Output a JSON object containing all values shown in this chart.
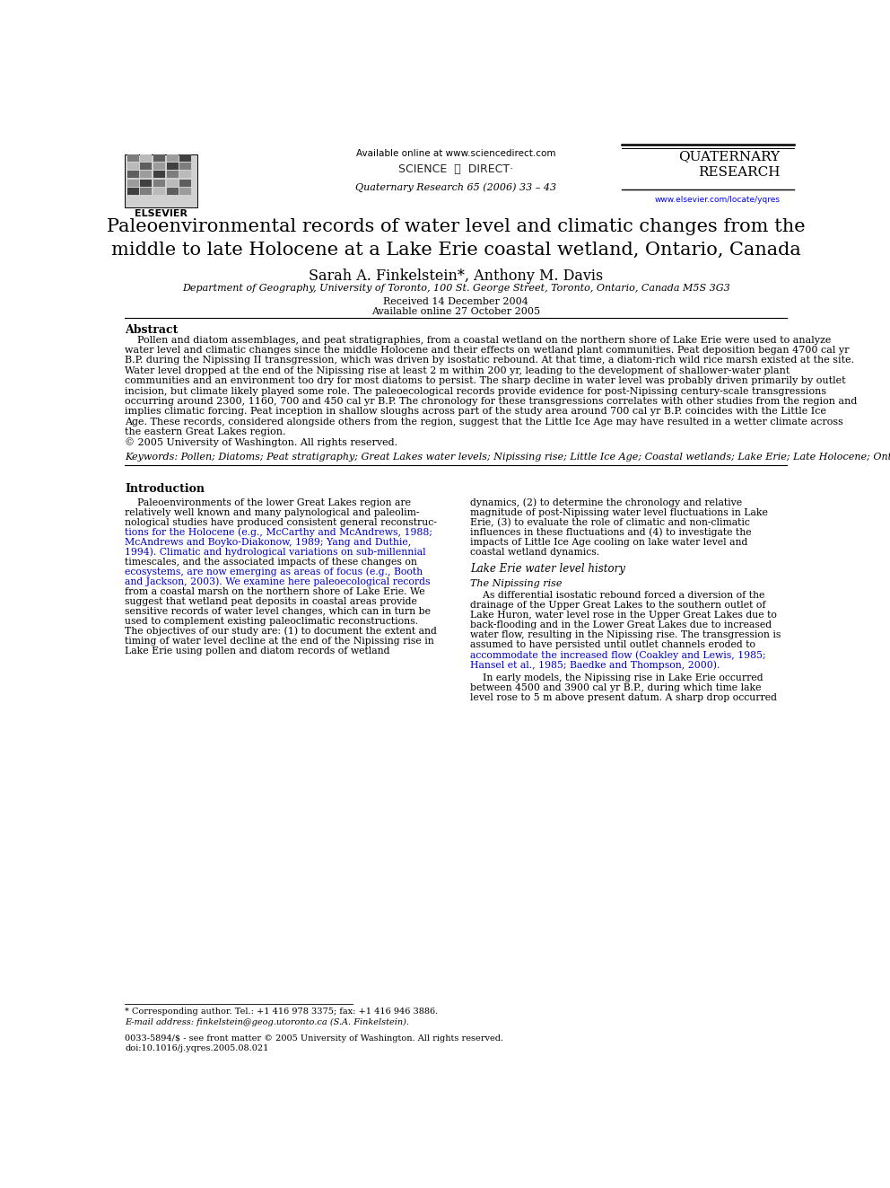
{
  "page_width": 9.92,
  "page_height": 13.23,
  "background_color": "#ffffff",
  "header": {
    "available_online_text": "Available online at www.sciencedirect.com",
    "journal_line1": "Quaternary Research 65 (2006) 33 – 43",
    "journal_name_line1": "QUATERNARY",
    "journal_name_line2": "RESEARCH",
    "journal_url": "www.elsevier.com/locate/yqres",
    "elsevier_text": "ELSEVIER"
  },
  "title": "Paleoenvironmental records of water level and climatic changes from the\nmiddle to late Holocene at a Lake Erie coastal wetland, Ontario, Canada",
  "authors": "Sarah A. Finkelstein*, Anthony M. Davis",
  "affiliation": "Department of Geography, University of Toronto, 100 St. George Street, Toronto, Ontario, Canada M5S 3G3",
  "received": "Received 14 December 2004",
  "available_online": "Available online 27 October 2005",
  "abstract_title": "Abstract",
  "abstract_lines": [
    "    Pollen and diatom assemblages, and peat stratigraphies, from a coastal wetland on the northern shore of Lake Erie were used to analyze",
    "water level and climatic changes since the middle Holocene and their effects on wetland plant communities. Peat deposition began 4700 cal yr",
    "B.P. during the Nipissing II transgression, which was driven by isostatic rebound. At that time, a diatom-rich wild rice marsh existed at the site.",
    "Water level dropped at the end of the Nipissing rise at least 2 m within 200 yr, leading to the development of shallower-water plant",
    "communities and an environment too dry for most diatoms to persist. The sharp decline in water level was probably driven primarily by outlet",
    "incision, but climate likely played some role. The paleoecological records provide evidence for post-Nipissing century-scale transgressions",
    "occurring around 2300, 1160, 700 and 450 cal yr B.P. The chronology for these transgressions correlates with other studies from the region and",
    "implies climatic forcing. Peat inception in shallow sloughs across part of the study area around 700 cal yr B.P. coincides with the Little Ice",
    "Age. These records, considered alongside others from the region, suggest that the Little Ice Age may have resulted in a wetter climate across",
    "the eastern Great Lakes region.",
    "© 2005 University of Washington. All rights reserved."
  ],
  "keywords_label": "Keywords:",
  "keywords_text": "Pollen; Diatoms; Peat stratigraphy; Great Lakes water levels; Nipissing rise; Little Ice Age; Coastal wetlands; Lake Erie; Late Holocene; Ontario",
  "intro_title": "Introduction",
  "intro_col1_lines": [
    "    Paleoenvironments of the lower Great Lakes region are",
    "relatively well known and many palynological and paleolim-",
    "nological studies have produced consistent general reconstruc-",
    "tions for the Holocene (e.g., McCarthy and McAndrews, 1988;",
    "McAndrews and Boyko-Diakonow, 1989; Yang and Duthie,",
    "1994). Climatic and hydrological variations on sub-millennial",
    "timescales, and the associated impacts of these changes on",
    "ecosystems, are now emerging as areas of focus (e.g., Booth",
    "and Jackson, 2003). We examine here paleoecological records",
    "from a coastal marsh on the northern shore of Lake Erie. We",
    "suggest that wetland peat deposits in coastal areas provide",
    "sensitive records of water level changes, which can in turn be",
    "used to complement existing paleoclimatic reconstructions.",
    "The objectives of our study are: (1) to document the extent and",
    "timing of water level decline at the end of the Nipissing rise in",
    "Lake Erie using pollen and diatom records of wetland"
  ],
  "intro_col1_colors": [
    "black",
    "black",
    "black",
    "#0000cc",
    "#0000cc",
    "#0000cc",
    "black",
    "#0000cc",
    "#0000cc",
    "black",
    "black",
    "black",
    "black",
    "black",
    "black",
    "black"
  ],
  "intro_col2_lines": [
    "dynamics, (2) to determine the chronology and relative",
    "magnitude of post-Nipissing water level fluctuations in Lake",
    "Erie, (3) to evaluate the role of climatic and non-climatic",
    "influences in these fluctuations and (4) to investigate the",
    "impacts of Little Ice Age cooling on lake water level and",
    "coastal wetland dynamics."
  ],
  "lake_erie_section": "Lake Erie water level history",
  "nipissing_section": "The Nipissing rise",
  "nipissing_lines": [
    "    As differential isostatic rebound forced a diversion of the",
    "drainage of the Upper Great Lakes to the southern outlet of",
    "Lake Huron, water level rose in the Upper Great Lakes due to",
    "back-flooding and in the Lower Great Lakes due to increased",
    "water flow, resulting in the Nipissing rise. The transgression is",
    "assumed to have persisted until outlet channels eroded to",
    "accommodate the increased flow (Coakley and Lewis, 1985;",
    "Hansel et al., 1985; Baedke and Thompson, 2000)."
  ],
  "nipissing_colors": [
    "black",
    "black",
    "black",
    "black",
    "black",
    "black",
    "#0000cc",
    "#0000cc"
  ],
  "nipissing2_lines": [
    "    In early models, the Nipissing rise in Lake Erie occurred",
    "between 4500 and 3900 cal yr B.P., during which time lake",
    "level rose to 5 m above present datum. A sharp drop occurred"
  ],
  "footnote_star": "* Corresponding author. Tel.: +1 416 978 3375; fax: +1 416 946 3886.",
  "footnote_email": "E-mail address: finkelstein@geog.utoronto.ca (S.A. Finkelstein).",
  "footer_issn": "0033-5894/$ - see front matter © 2005 University of Washington. All rights reserved.",
  "footer_doi": "doi:10.1016/j.yqres.2005.08.021"
}
